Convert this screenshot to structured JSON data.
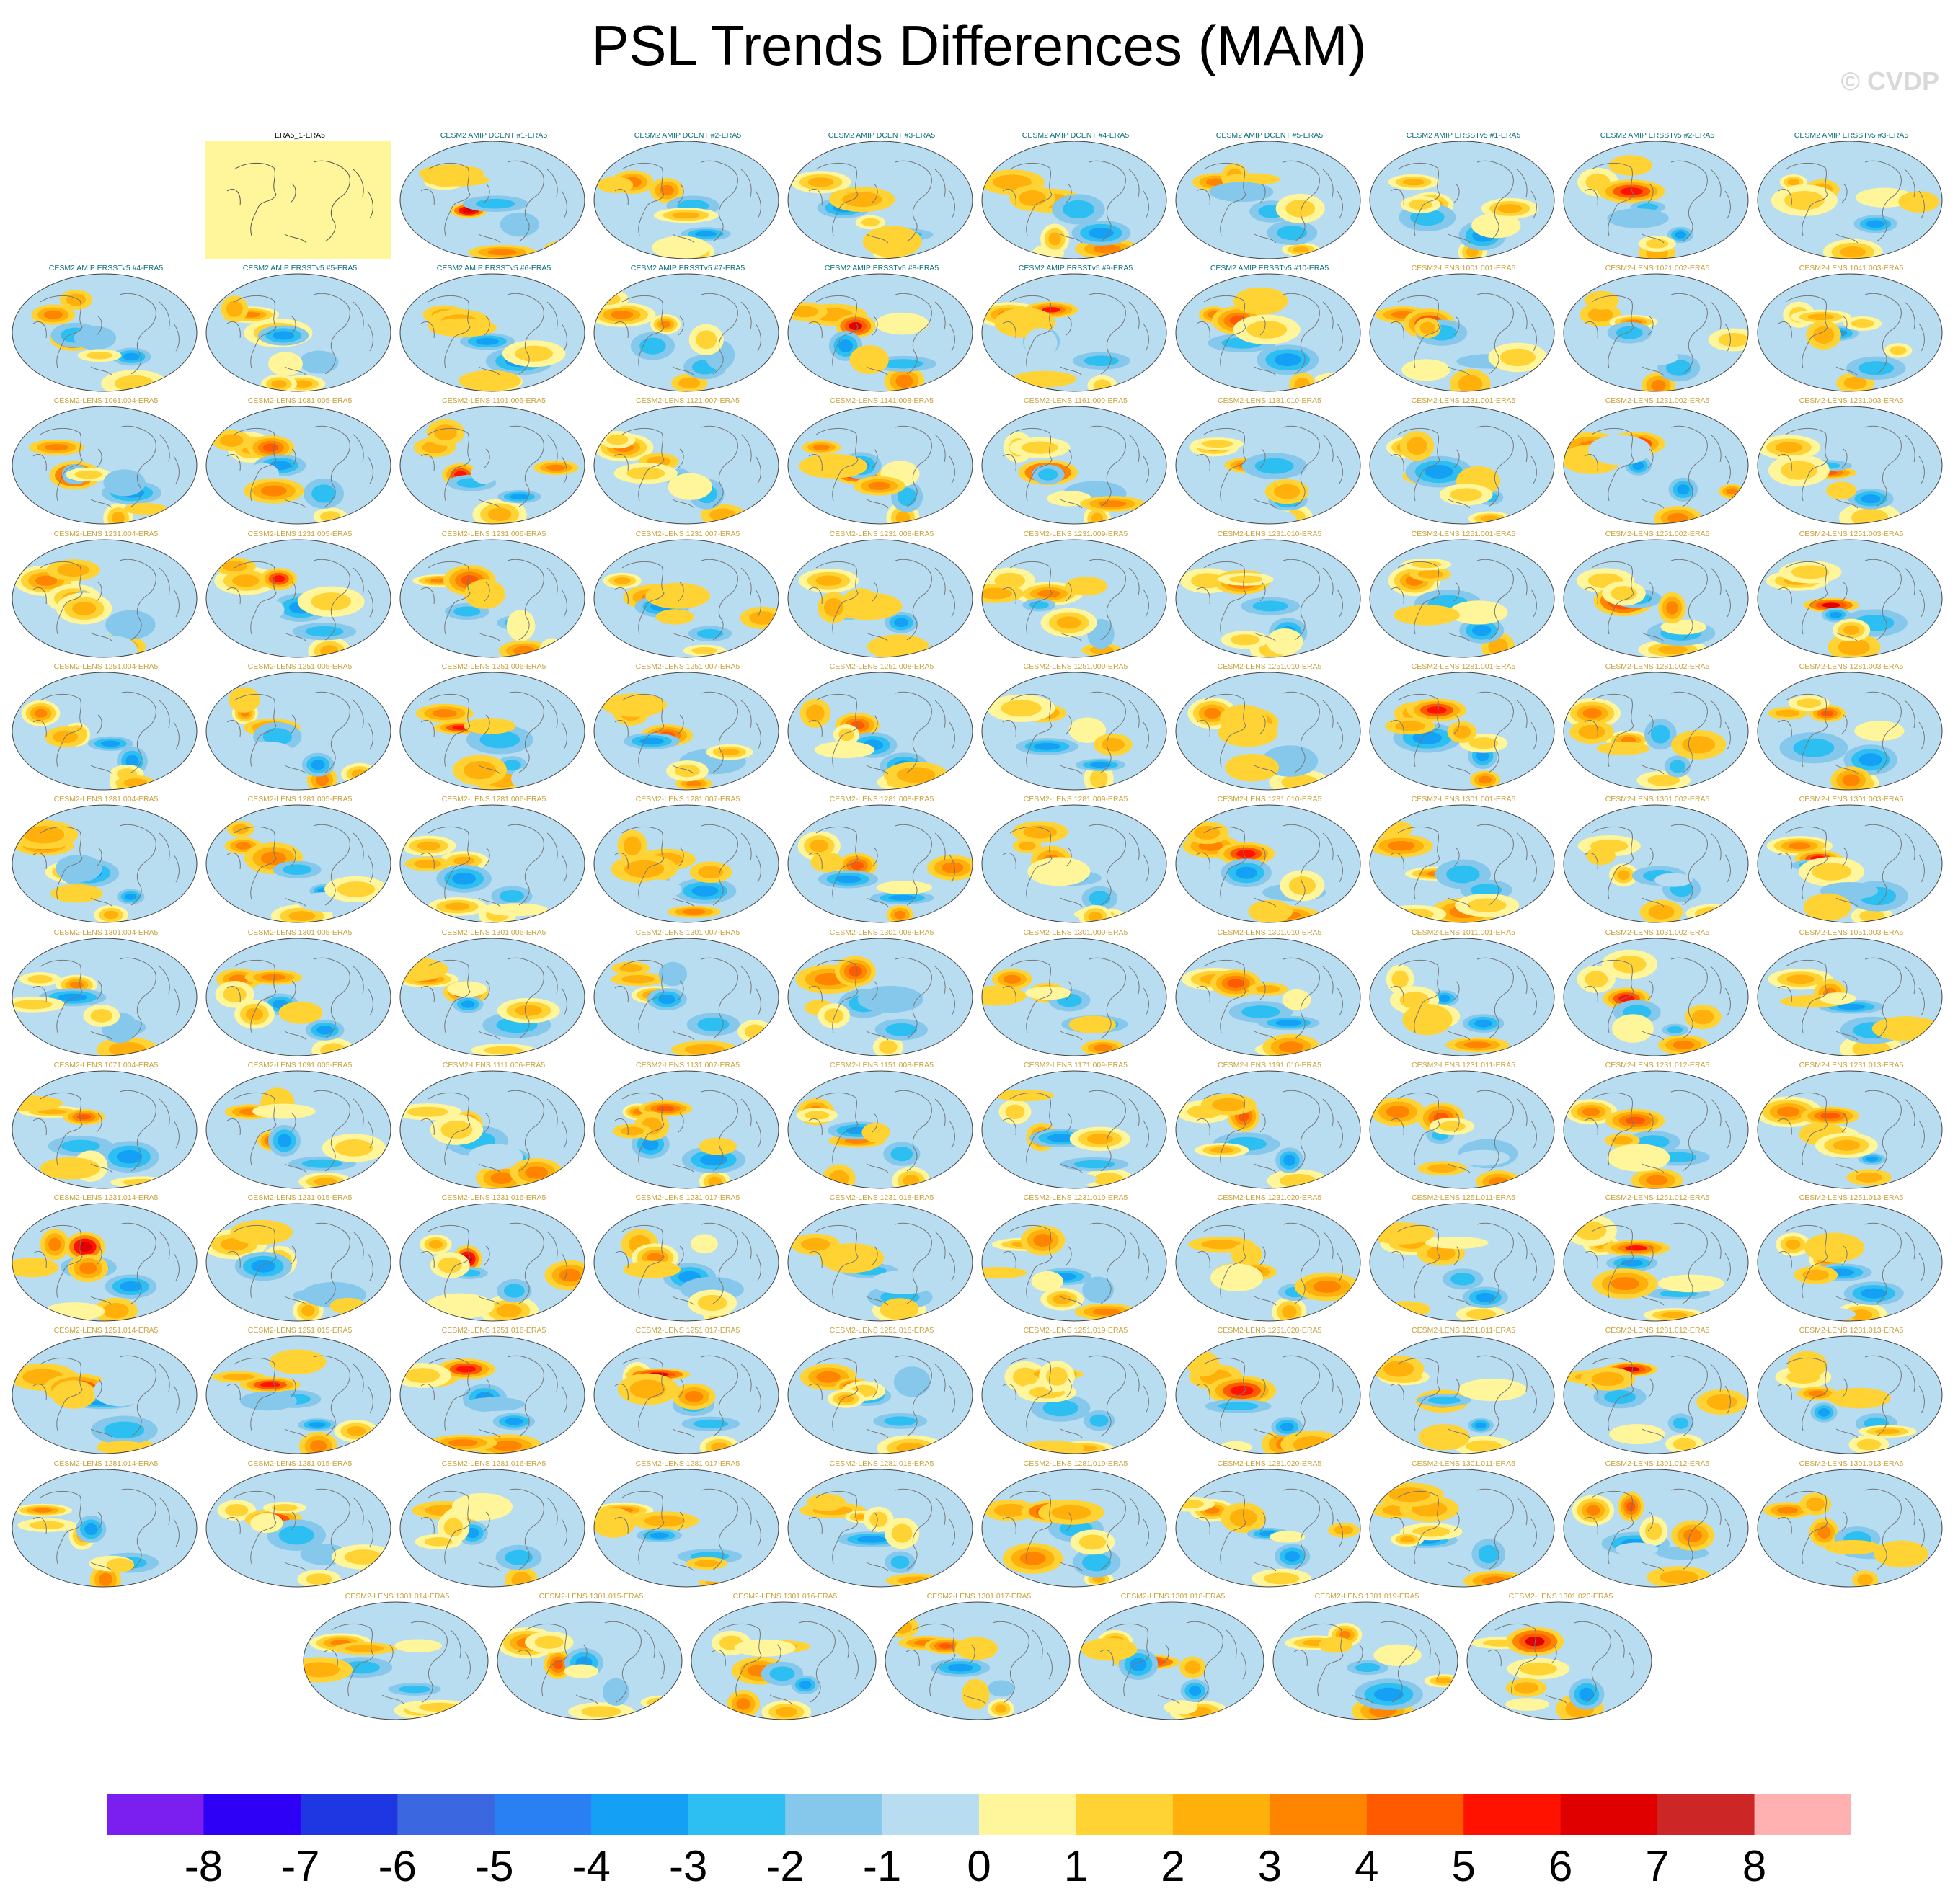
{
  "title": "PSL Trends Differences (MAM)",
  "copyright": "© CVDP",
  "chart_data": {
    "type": "heatmap",
    "title": "PSL Trends Differences (MAM)",
    "projection": "global map panels (ellipse)",
    "colorbar": {
      "ticks": [
        "-8",
        "-7",
        "-6",
        "-5",
        "-4",
        "-3",
        "-2",
        "-1",
        "0",
        "1",
        "2",
        "3",
        "4",
        "5",
        "6",
        "7",
        "8"
      ],
      "range": [
        -9,
        9
      ],
      "colors": [
        "#7b1ff0",
        "#2e00f5",
        "#1f37e3",
        "#3b68e0",
        "#2880f2",
        "#14a0f5",
        "#2ebff2",
        "#85c8ec",
        "#b8ddf1",
        "#fff59a",
        "#ffd333",
        "#ffb00a",
        "#ff8400",
        "#ff5a00",
        "#ff1300",
        "#e00000",
        "#cd2626",
        "#ffb0b0"
      ]
    },
    "panels": [
      "ERA5_1-ERA5",
      "CESM2 AMIP DCENT #1-ERA5",
      "CESM2 AMIP DCENT #2-ERA5",
      "CESM2 AMIP DCENT #3-ERA5",
      "CESM2 AMIP DCENT #4-ERA5",
      "CESM2 AMIP DCENT #5-ERA5",
      "CESM2 AMIP ERSSTv5 #1-ERA5",
      "CESM2 AMIP ERSSTv5 #2-ERA5",
      "CESM2 AMIP ERSSTv5 #3-ERA5",
      "CESM2 AMIP ERSSTv5 #4-ERA5",
      "CESM2 AMIP ERSSTv5 #5-ERA5",
      "CESM2 AMIP ERSSTv5 #6-ERA5",
      "CESM2 AMIP ERSSTv5 #7-ERA5",
      "CESM2 AMIP ERSSTv5 #8-ERA5",
      "CESM2 AMIP ERSSTv5 #9-ERA5",
      "CESM2 AMIP ERSSTv5 #10-ERA5",
      "CESM2-LENS 1001.001-ERA5",
      "CESM2-LENS 1021.002-ERA5",
      "CESM2-LENS 1041.003-ERA5",
      "CESM2-LENS 1061.004-ERA5",
      "CESM2-LENS 1081.005-ERA5",
      "CESM2-LENS 1101.006-ERA5",
      "CESM2-LENS 1121.007-ERA5",
      "CESM2-LENS 1141.008-ERA5",
      "CESM2-LENS 1161.009-ERA5",
      "CESM2-LENS 1181.010-ERA5",
      "CESM2-LENS 1231.001-ERA5",
      "CESM2-LENS 1231.002-ERA5",
      "CESM2-LENS 1231.003-ERA5",
      "CESM2-LENS 1231.004-ERA5",
      "CESM2-LENS 1231.005-ERA5",
      "CESM2-LENS 1231.006-ERA5",
      "CESM2-LENS 1231.007-ERA5",
      "CESM2-LENS 1231.008-ERA5",
      "CESM2-LENS 1231.009-ERA5",
      "CESM2-LENS 1231.010-ERA5",
      "CESM2-LENS 1251.001-ERA5",
      "CESM2-LENS 1251.002-ERA5",
      "CESM2-LENS 1251.003-ERA5",
      "CESM2-LENS 1251.004-ERA5",
      "CESM2-LENS 1251.005-ERA5",
      "CESM2-LENS 1251.006-ERA5",
      "CESM2-LENS 1251.007-ERA5",
      "CESM2-LENS 1251.008-ERA5",
      "CESM2-LENS 1251.009-ERA5",
      "CESM2-LENS 1251.010-ERA5",
      "CESM2-LENS 1281.001-ERA5",
      "CESM2-LENS 1281.002-ERA5",
      "CESM2-LENS 1281.003-ERA5",
      "CESM2-LENS 1281.004-ERA5",
      "CESM2-LENS 1281.005-ERA5",
      "CESM2-LENS 1281.006-ERA5",
      "CESM2-LENS 1281.007-ERA5",
      "CESM2-LENS 1281.008-ERA5",
      "CESM2-LENS 1281.009-ERA5",
      "CESM2-LENS 1281.010-ERA5",
      "CESM2-LENS 1301.001-ERA5",
      "CESM2-LENS 1301.002-ERA5",
      "CESM2-LENS 1301.003-ERA5",
      "CESM2-LENS 1301.004-ERA5",
      "CESM2-LENS 1301.005-ERA5",
      "CESM2-LENS 1301.006-ERA5",
      "CESM2-LENS 1301.007-ERA5",
      "CESM2-LENS 1301.008-ERA5",
      "CESM2-LENS 1301.009-ERA5",
      "CESM2-LENS 1301.010-ERA5",
      "CESM2-LENS 1011.001-ERA5",
      "CESM2-LENS 1031.002-ERA5",
      "CESM2-LENS 1051.003-ERA5",
      "CESM2-LENS 1071.004-ERA5",
      "CESM2-LENS 1091.005-ERA5",
      "CESM2-LENS 1111.006-ERA5",
      "CESM2-LENS 1131.007-ERA5",
      "CESM2-LENS 1151.008-ERA5",
      "CESM2-LENS 1171.009-ERA5",
      "CESM2-LENS 1191.010-ERA5",
      "CESM2-LENS 1231.011-ERA5",
      "CESM2-LENS 1231.012-ERA5",
      "CESM2-LENS 1231.013-ERA5",
      "CESM2-LENS 1231.014-ERA5",
      "CESM2-LENS 1231.015-ERA5",
      "CESM2-LENS 1231.016-ERA5",
      "CESM2-LENS 1231.017-ERA5",
      "CESM2-LENS 1231.018-ERA5",
      "CESM2-LENS 1231.019-ERA5",
      "CESM2-LENS 1231.020-ERA5",
      "CESM2-LENS 1251.011-ERA5",
      "CESM2-LENS 1251.012-ERA5",
      "CESM2-LENS 1251.013-ERA5",
      "CESM2-LENS 1251.014-ERA5",
      "CESM2-LENS 1251.015-ERA5",
      "CESM2-LENS 1251.016-ERA5",
      "CESM2-LENS 1251.017-ERA5",
      "CESM2-LENS 1251.018-ERA5",
      "CESM2-LENS 1251.019-ERA5",
      "CESM2-LENS 1251.020-ERA5",
      "CESM2-LENS 1281.011-ERA5",
      "CESM2-LENS 1281.012-ERA5",
      "CESM2-LENS 1281.013-ERA5",
      "CESM2-LENS 1281.014-ERA5",
      "CESM2-LENS 1281.015-ERA5",
      "CESM2-LENS 1281.016-ERA5",
      "CESM2-LENS 1281.017-ERA5",
      "CESM2-LENS 1281.018-ERA5",
      "CESM2-LENS 1281.019-ERA5",
      "CESM2-LENS 1281.020-ERA5",
      "CESM2-LENS 1301.011-ERA5",
      "CESM2-LENS 1301.012-ERA5",
      "CESM2-LENS 1301.013-ERA5",
      "CESM2-LENS 1301.014-ERA5",
      "CESM2-LENS 1301.015-ERA5",
      "CESM2-LENS 1301.016-ERA5",
      "CESM2-LENS 1301.017-ERA5",
      "CESM2-LENS 1301.018-ERA5",
      "CESM2-LENS 1301.019-ERA5",
      "CESM2-LENS 1301.020-ERA5"
    ],
    "label_colors": {
      "reference": "#000000",
      "amip": "#0d6f78",
      "lens": "#c8a23c"
    }
  }
}
